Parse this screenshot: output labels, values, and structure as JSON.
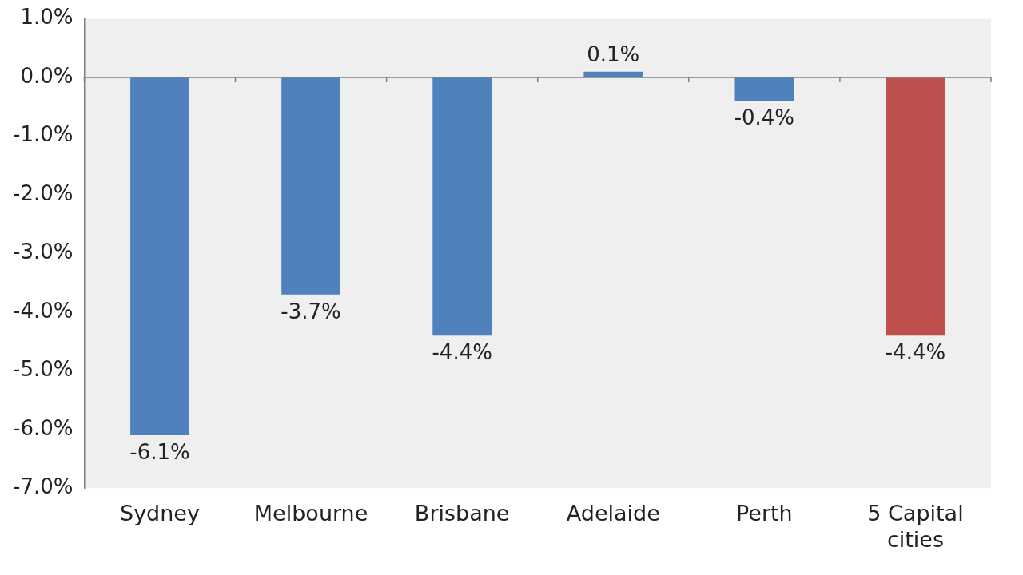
{
  "chart_data": {
    "type": "bar",
    "categories": [
      "Sydney",
      "Melbourne",
      "Brisbane",
      "Adelaide",
      "Perth",
      "5 Capital cities"
    ],
    "values": [
      -6.1,
      -3.7,
      -4.4,
      0.1,
      -0.4,
      -4.4
    ],
    "value_labels": [
      "-6.1%",
      "-3.7%",
      "-4.4%",
      "0.1%",
      "-0.4%",
      "-4.4%"
    ],
    "colors": [
      "#4f81bd",
      "#4f81bd",
      "#4f81bd",
      "#4f81bd",
      "#4f81bd",
      "#c0504d"
    ],
    "ylim": [
      -7,
      1
    ],
    "yticks": [
      {
        "value": -7,
        "label": "-7.0%"
      },
      {
        "value": -6,
        "label": "-6.0%"
      },
      {
        "value": -5,
        "label": "-5.0%"
      },
      {
        "value": -4,
        "label": "-4.0%"
      },
      {
        "value": -3,
        "label": "-3.0%"
      },
      {
        "value": -2,
        "label": "-2.0%"
      },
      {
        "value": -1,
        "label": "-1.0%"
      },
      {
        "value": 0,
        "label": "0.0%"
      },
      {
        "value": 1,
        "label": "1.0%"
      }
    ],
    "grid": false,
    "data_labels": true
  }
}
